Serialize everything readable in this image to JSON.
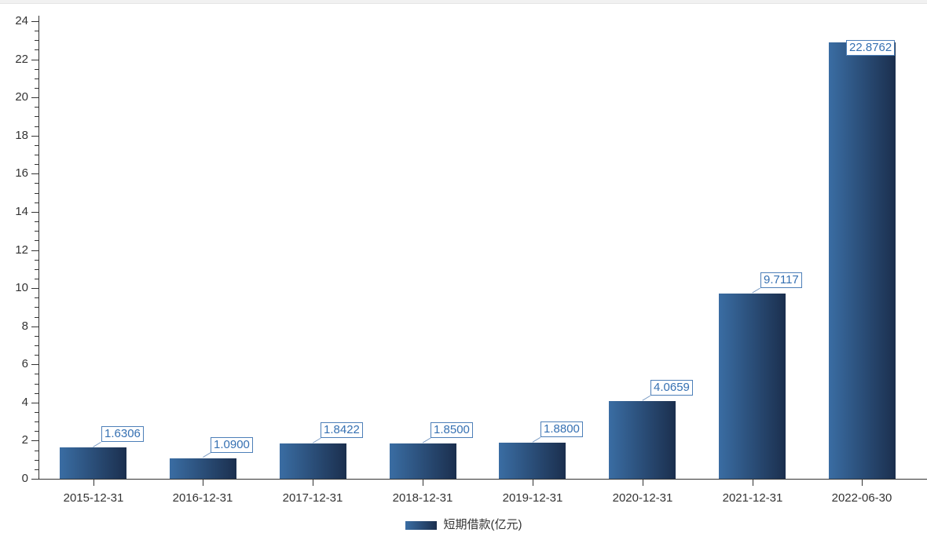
{
  "page": {
    "background": "#ffffff",
    "top_strip_color": "#f1f1f1"
  },
  "chart_data": {
    "type": "bar",
    "title": "",
    "categories": [
      "2015-12-31",
      "2016-12-31",
      "2017-12-31",
      "2018-12-31",
      "2019-12-31",
      "2020-12-31",
      "2021-12-31",
      "2022-06-30"
    ],
    "series": [
      {
        "name": "短期借款(亿元)",
        "values": [
          1.6306,
          1.09,
          1.8422,
          1.85,
          1.88,
          4.0659,
          9.7117,
          22.8762
        ]
      }
    ],
    "value_labels": [
      "1.6306",
      "1.0900",
      "1.8422",
      "1.8500",
      "1.8800",
      "4.0659",
      "9.7117",
      "22.8762"
    ],
    "xlabel": "",
    "ylabel": "",
    "ylim": [
      0,
      24
    ],
    "y_major_step": 2,
    "y_minor_step": 0.5,
    "y_tick_labels": [
      "0",
      "2",
      "4",
      "6",
      "8",
      "10",
      "12",
      "14",
      "16",
      "18",
      "20",
      "22",
      "24"
    ],
    "grid": false,
    "legend": {
      "label": "短期借款(亿元)",
      "position": "bottom"
    },
    "colors": {
      "bar_gradient_start": "#3a6da3",
      "bar_gradient_end": "#1b2f4e",
      "axis": "#333333",
      "tick_label": "#333333",
      "value_label_text": "#3570b2",
      "value_label_border": "#4d7fb8",
      "value_label_bg": "#ffffff",
      "leader_line": "#7f9fc6"
    }
  }
}
